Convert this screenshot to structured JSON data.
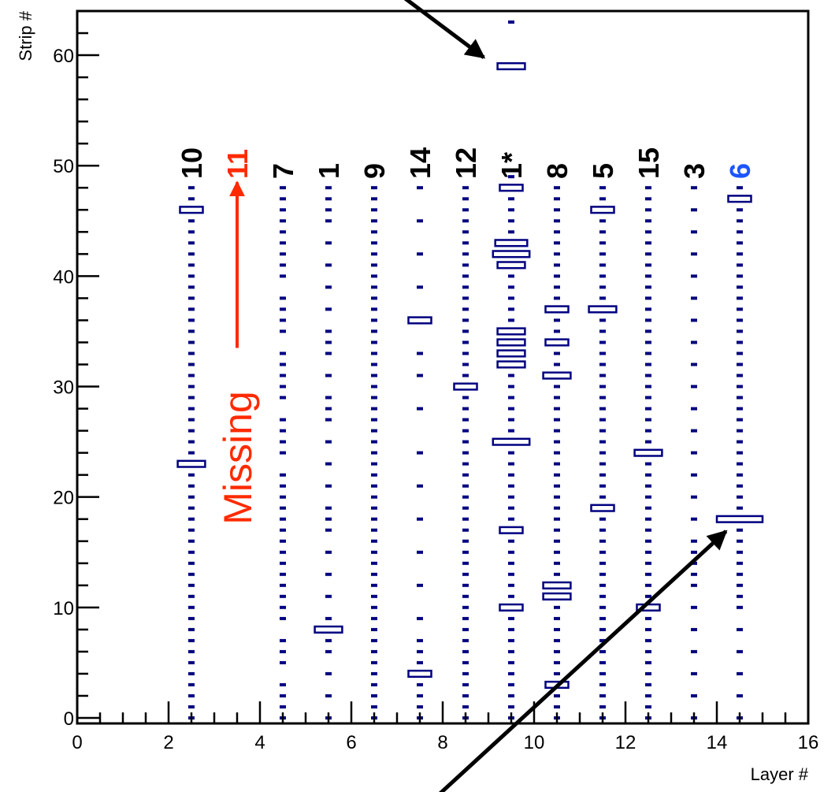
{
  "chart_data": {
    "type": "heatmap",
    "title": "",
    "xlabel": "Layer #",
    "ylabel": "Strip #",
    "xlim": [
      0,
      16
    ],
    "ylim": [
      -0.5,
      64
    ],
    "x_ticks": [
      0,
      2,
      4,
      6,
      8,
      10,
      12,
      14,
      16
    ],
    "y_ticks": [
      0,
      10,
      20,
      30,
      40,
      50,
      60
    ],
    "grid": false,
    "colors": {
      "hits": "#000080",
      "axes": "#000000",
      "highlight_red": "#ff2a00",
      "highlight_blue": "#1a55ff"
    },
    "module_labels": [
      {
        "layer": 2.5,
        "label": "10",
        "color": "#000000"
      },
      {
        "layer": 3.5,
        "label": "11",
        "color": "#ff2a00"
      },
      {
        "layer": 4.5,
        "label": "7",
        "color": "#000000"
      },
      {
        "layer": 5.5,
        "label": "1",
        "color": "#000000"
      },
      {
        "layer": 6.5,
        "label": "9",
        "color": "#000000"
      },
      {
        "layer": 7.5,
        "label": "14",
        "color": "#000000"
      },
      {
        "layer": 8.5,
        "label": "12",
        "color": "#000000"
      },
      {
        "layer": 9.5,
        "label": "1*",
        "color": "#000000"
      },
      {
        "layer": 10.5,
        "label": "8",
        "color": "#000000"
      },
      {
        "layer": 11.5,
        "label": "5",
        "color": "#000000"
      },
      {
        "layer": 12.5,
        "label": "15",
        "color": "#000000"
      },
      {
        "layer": 13.5,
        "label": "3",
        "color": "#000000"
      },
      {
        "layer": 14.5,
        "label": "6",
        "color": "#1a55ff"
      }
    ],
    "annotations": {
      "missing_text": "Missing",
      "missing_arrow": {
        "layer": 3.5,
        "strip_from": 33.5,
        "strip_to": 48.5
      },
      "pointer_top": {
        "from": [
          6.9,
          66.0
        ],
        "to": [
          8.9,
          59.8
        ]
      },
      "pointer_bottom": {
        "from": [
          7.9,
          -7.0
        ],
        "to": [
          14.2,
          16.9
        ]
      }
    },
    "columns": [
      {
        "layer": 2.5,
        "strips": [
          0,
          1,
          2,
          3,
          4,
          5,
          6,
          7,
          8,
          9,
          10,
          11,
          12,
          13,
          14,
          15,
          16,
          17,
          18,
          19,
          20,
          21,
          22,
          23,
          24,
          25,
          26,
          27,
          28,
          29,
          30,
          31,
          32,
          33,
          34,
          35,
          36,
          37,
          38,
          39,
          40,
          41,
          42,
          43,
          44,
          45,
          46,
          47,
          48
        ],
        "large": [
          {
            "strip": 23,
            "w": 0.6
          },
          {
            "strip": 46,
            "w": 0.5
          }
        ]
      },
      {
        "layer": 4.5,
        "strips": [
          0,
          1,
          2,
          3,
          5,
          6,
          7,
          9,
          10,
          11,
          12,
          13,
          14,
          15,
          16,
          17,
          18,
          19,
          20,
          21,
          22,
          24,
          25,
          26,
          27,
          29,
          30,
          31,
          32,
          33,
          35,
          36,
          37,
          38,
          40,
          41,
          42,
          43,
          44,
          45,
          46,
          47,
          48
        ],
        "large": []
      },
      {
        "layer": 5.5,
        "strips": [
          0,
          2,
          4,
          6,
          7,
          8,
          9,
          11,
          13,
          15,
          17,
          18,
          19,
          21,
          23,
          25,
          27,
          28,
          29,
          31,
          33,
          34,
          35,
          37,
          39,
          41,
          43,
          45,
          46,
          47,
          48
        ],
        "large": [
          {
            "strip": 8,
            "w": 0.6
          }
        ]
      },
      {
        "layer": 6.5,
        "strips": [
          0,
          1,
          2,
          3,
          4,
          5,
          6,
          7,
          8,
          9,
          10,
          11,
          12,
          13,
          14,
          15,
          16,
          17,
          18,
          19,
          20,
          21,
          22,
          23,
          24,
          25,
          26,
          27,
          28,
          29,
          30,
          31,
          32,
          33,
          34,
          35,
          36,
          37,
          38,
          39,
          40,
          41,
          42,
          43,
          44,
          45,
          46,
          47,
          48
        ],
        "large": []
      },
      {
        "layer": 7.5,
        "strips": [
          0,
          1,
          2,
          3,
          4,
          5,
          6,
          7,
          9,
          12,
          15,
          18,
          21,
          24,
          28,
          31,
          33,
          36,
          39,
          42,
          45,
          48
        ],
        "large": [
          {
            "strip": 4,
            "w": 0.5
          },
          {
            "strip": 36,
            "w": 0.5
          }
        ]
      },
      {
        "layer": 8.5,
        "strips": [
          0,
          1,
          2,
          3,
          4,
          5,
          6,
          7,
          8,
          9,
          10,
          11,
          12,
          13,
          14,
          15,
          16,
          17,
          18,
          19,
          20,
          21,
          22,
          23,
          24,
          25,
          26,
          27,
          28,
          29,
          30,
          31,
          32,
          33,
          34,
          35,
          36,
          37,
          38,
          39,
          40,
          41,
          42,
          43,
          44,
          45,
          46,
          47,
          48
        ],
        "large": [
          {
            "strip": 30,
            "w": 0.5
          }
        ]
      },
      {
        "layer": 9.5,
        "strips": [
          0,
          1,
          2,
          3,
          4,
          5,
          6,
          7,
          8,
          9,
          10,
          11,
          12,
          13,
          14,
          15,
          16,
          17,
          18,
          19,
          20,
          21,
          22,
          23,
          24,
          25,
          26,
          27,
          28,
          29,
          30,
          31,
          32,
          33,
          34,
          35,
          36,
          37,
          38,
          39,
          40,
          41,
          42,
          43,
          44,
          45,
          46,
          47,
          48,
          49,
          59,
          63
        ],
        "large": [
          {
            "strip": 10,
            "w": 0.5
          },
          {
            "strip": 17,
            "w": 0.5
          },
          {
            "strip": 25,
            "w": 0.8
          },
          {
            "strip": 32,
            "w": 0.6
          },
          {
            "strip": 33,
            "w": 0.6
          },
          {
            "strip": 34,
            "w": 0.6
          },
          {
            "strip": 35,
            "w": 0.6
          },
          {
            "strip": 41,
            "w": 0.6
          },
          {
            "strip": 42,
            "w": 0.8
          },
          {
            "strip": 43,
            "w": 0.7
          },
          {
            "strip": 48,
            "w": 0.5
          },
          {
            "strip": 59,
            "w": 0.6
          }
        ]
      },
      {
        "layer": 10.5,
        "strips": [
          0,
          1,
          2,
          3,
          4,
          5,
          6,
          7,
          8,
          9,
          10,
          11,
          12,
          13,
          14,
          15,
          16,
          17,
          18,
          19,
          20,
          21,
          22,
          23,
          24,
          25,
          26,
          27,
          28,
          29,
          30,
          31,
          32,
          33,
          34,
          35,
          36,
          37,
          38,
          39,
          40,
          41,
          42,
          43,
          44,
          45,
          46,
          47,
          48
        ],
        "large": [
          {
            "strip": 3,
            "w": 0.5
          },
          {
            "strip": 11,
            "w": 0.6
          },
          {
            "strip": 12,
            "w": 0.6
          },
          {
            "strip": 31,
            "w": 0.6
          },
          {
            "strip": 34,
            "w": 0.5
          },
          {
            "strip": 37,
            "w": 0.5
          }
        ]
      },
      {
        "layer": 11.5,
        "strips": [
          0,
          1,
          2,
          3,
          4,
          5,
          6,
          7,
          8,
          9,
          10,
          11,
          12,
          13,
          14,
          15,
          16,
          17,
          18,
          19,
          20,
          21,
          22,
          23,
          24,
          25,
          26,
          27,
          28,
          29,
          30,
          31,
          32,
          33,
          34,
          35,
          36,
          37,
          38,
          39,
          40,
          41,
          42,
          43,
          44,
          45,
          46,
          47,
          48
        ],
        "large": [
          {
            "strip": 19,
            "w": 0.5
          },
          {
            "strip": 37,
            "w": 0.6
          },
          {
            "strip": 46,
            "w": 0.5
          }
        ]
      },
      {
        "layer": 12.5,
        "strips": [
          0,
          1,
          2,
          3,
          4,
          5,
          6,
          7,
          8,
          9,
          10,
          11,
          12,
          13,
          14,
          15,
          16,
          17,
          18,
          19,
          20,
          21,
          22,
          23,
          24,
          25,
          26,
          27,
          28,
          29,
          30,
          31,
          32,
          33,
          34,
          35,
          36,
          37,
          38,
          39,
          40,
          41,
          42,
          43,
          44,
          45,
          46,
          47,
          48
        ],
        "large": [
          {
            "strip": 10,
            "w": 0.5
          },
          {
            "strip": 24,
            "w": 0.6
          }
        ]
      },
      {
        "layer": 13.5,
        "strips": [
          0,
          2,
          4,
          6,
          8,
          10,
          12,
          13,
          14,
          15,
          16,
          18,
          20,
          22,
          24,
          26,
          28,
          30,
          32,
          34,
          36,
          38,
          40,
          42,
          44,
          46,
          48
        ],
        "large": []
      },
      {
        "layer": 14.5,
        "strips": [
          0,
          2,
          4,
          6,
          8,
          10,
          11,
          12,
          13,
          14,
          15,
          16,
          17,
          19,
          20,
          21,
          22,
          23,
          24,
          25,
          26,
          27,
          28,
          29,
          30,
          31,
          32,
          33,
          34,
          35,
          36,
          37,
          38,
          39,
          40,
          41,
          42,
          43,
          44,
          45,
          46,
          47,
          48
        ],
        "large": [
          {
            "strip": 18,
            "w": 1.0
          },
          {
            "strip": 47,
            "w": 0.5
          }
        ]
      }
    ]
  }
}
